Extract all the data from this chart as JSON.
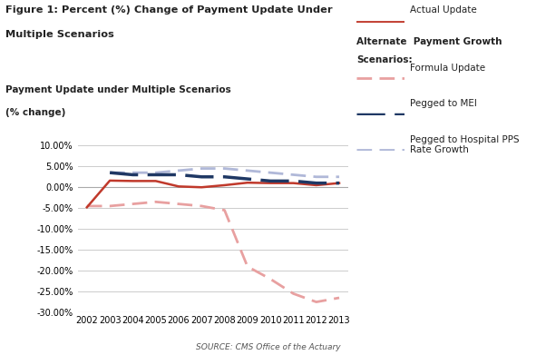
{
  "years": [
    2002,
    2003,
    2004,
    2005,
    2006,
    2007,
    2008,
    2009,
    2010,
    2011,
    2012,
    2013
  ],
  "actual_update": [
    -4.8,
    1.6,
    1.5,
    1.5,
    0.2,
    0.0,
    0.5,
    1.1,
    1.0,
    1.0,
    0.5,
    1.0
  ],
  "formula_update": [
    -4.5,
    -4.5,
    -4.0,
    -3.5,
    -4.0,
    -4.5,
    -5.5,
    -19.0,
    -22.0,
    -25.5,
    -27.5,
    -26.5
  ],
  "pegged_to_mei": [
    null,
    3.5,
    3.0,
    3.0,
    3.0,
    2.5,
    2.5,
    2.0,
    1.5,
    1.5,
    1.0,
    1.0
  ],
  "pegged_to_pps": [
    null,
    3.5,
    3.5,
    3.5,
    4.0,
    4.5,
    4.5,
    4.0,
    3.5,
    3.0,
    2.5,
    2.5
  ],
  "fig_title_line1": "Figure 1: Percent (%) Change of Payment Update Under",
  "fig_title_line2": "Multiple Scenarios",
  "chart_subtitle_line1": "Payment Update under Multiple Scenarios",
  "chart_subtitle_line2": "(% change)",
  "source_text": "SOURCE: CMS Office of the Actuary",
  "ylim": [
    -30,
    10
  ],
  "yticks": [
    -30,
    -25,
    -20,
    -15,
    -10,
    -5,
    0,
    5,
    10
  ],
  "actual_color": "#c0392b",
  "formula_color": "#e8a0a0",
  "mei_color": "#1f3864",
  "pps_color": "#b0b8d8",
  "background_color": "#ffffff",
  "grid_color": "#cccccc",
  "text_color": "#222222"
}
